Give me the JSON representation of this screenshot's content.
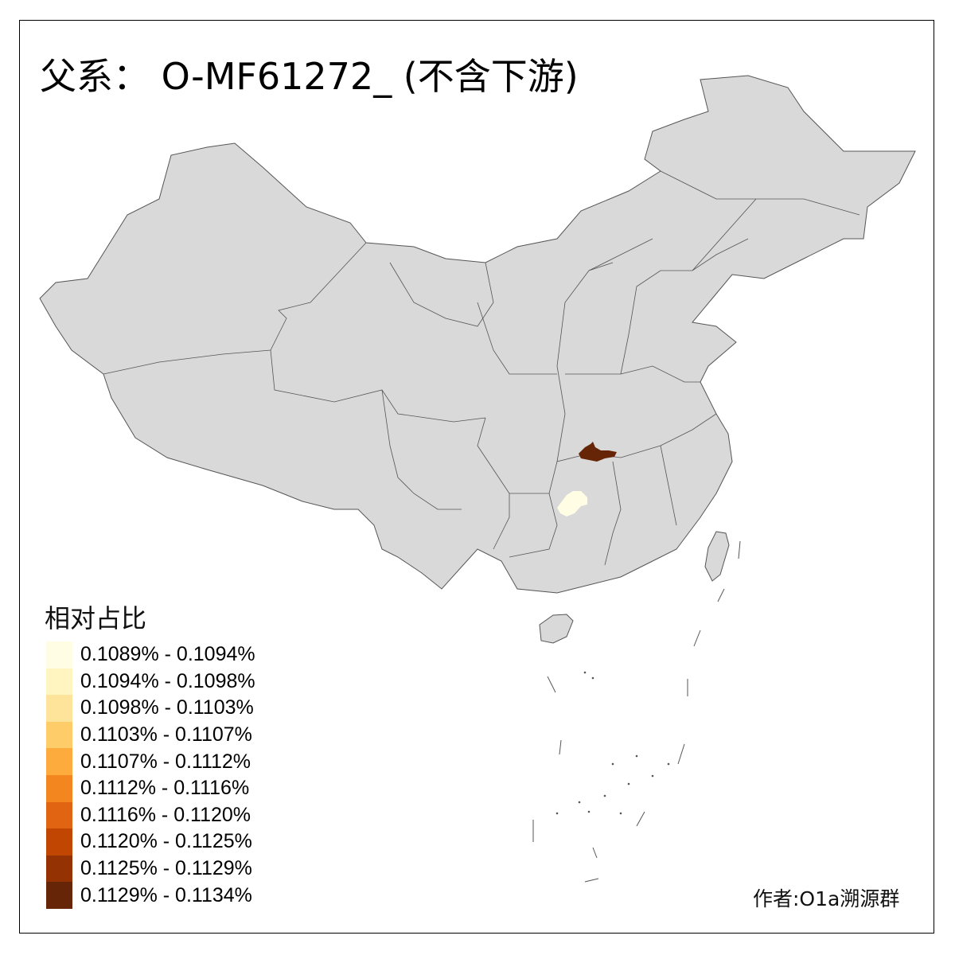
{
  "title": "父系： O-MF61272_ (不含下游)",
  "legend": {
    "title": "相对占比",
    "items": [
      {
        "label": "0.1089% - 0.1094%",
        "color": "#FFFDE4"
      },
      {
        "label": "0.1094% - 0.1098%",
        "color": "#FFF5C0"
      },
      {
        "label": "0.1098% - 0.1103%",
        "color": "#FEE39A"
      },
      {
        "label": "0.1103% - 0.1107%",
        "color": "#FECD6A"
      },
      {
        "label": "0.1107% - 0.1112%",
        "color": "#FDAB3D"
      },
      {
        "label": "0.1112% - 0.1116%",
        "color": "#F3861F"
      },
      {
        "label": "0.1116% - 0.1120%",
        "color": "#E06412"
      },
      {
        "label": "0.1120% - 0.1125%",
        "color": "#C14602"
      },
      {
        "label": "0.1125% - 0.1129%",
        "color": "#943204"
      },
      {
        "label": "0.1129% - 0.1134%",
        "color": "#662506"
      }
    ]
  },
  "credit": "作者:O1a溯源群",
  "colors": {
    "land": "#D9D9D9",
    "border": "#555555",
    "highlight_high": "#662506",
    "highlight_low": "#FFFDE4"
  }
}
